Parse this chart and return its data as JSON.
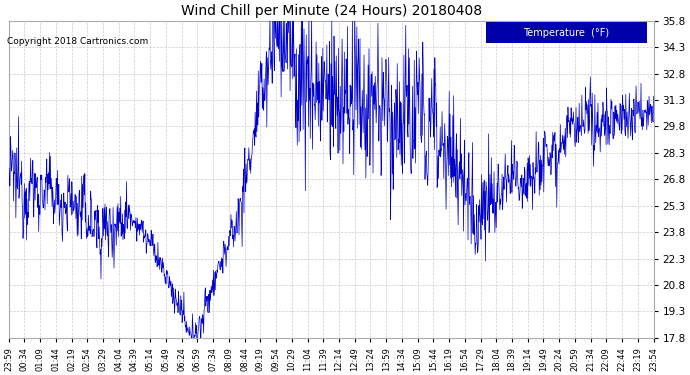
{
  "title": "Wind Chill per Minute (24 Hours) 20180408",
  "copyright_text": "Copyright 2018 Cartronics.com",
  "legend_label": "Temperature  (°F)",
  "background_color": "#ffffff",
  "plot_bg_color": "#ffffff",
  "grid_color": "#cccccc",
  "line_color": "#0000cc",
  "legend_bg": "#0000aa",
  "legend_text_color": "#ffffff",
  "ylim": [
    17.8,
    35.8
  ],
  "yticks": [
    17.8,
    19.3,
    20.8,
    22.3,
    23.8,
    25.3,
    26.8,
    28.3,
    29.8,
    31.3,
    32.8,
    34.3,
    35.8
  ],
  "xtick_labels": [
    "23:59",
    "00:34",
    "01:09",
    "01:44",
    "02:19",
    "02:54",
    "03:29",
    "04:04",
    "04:39",
    "05:14",
    "05:49",
    "06:24",
    "06:59",
    "07:34",
    "08:09",
    "08:44",
    "09:19",
    "09:54",
    "10:29",
    "11:04",
    "11:39",
    "12:14",
    "12:49",
    "13:24",
    "13:59",
    "14:34",
    "15:09",
    "15:44",
    "16:19",
    "16:54",
    "17:29",
    "18:04",
    "18:39",
    "19:14",
    "19:49",
    "20:24",
    "20:59",
    "21:34",
    "22:09",
    "22:44",
    "23:19",
    "23:54"
  ],
  "figsize": [
    6.9,
    3.75
  ],
  "dpi": 100
}
